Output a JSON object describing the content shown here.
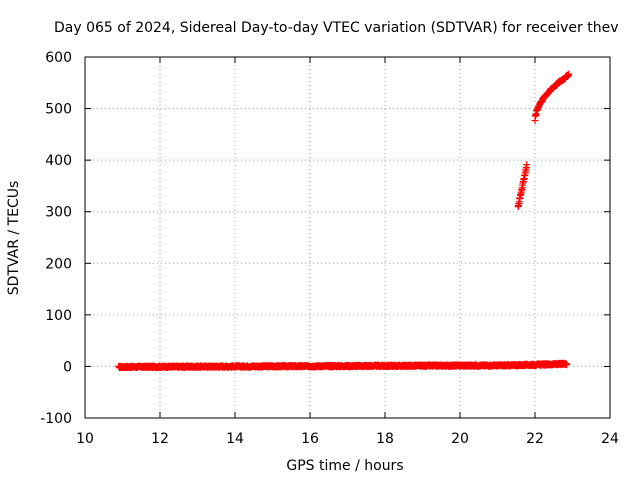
{
  "chart_data": {
    "type": "scatter",
    "title": "Day 065 of 2024, Sidereal Day-to-day VTEC variation (SDTVAR) for receiver thev",
    "xlabel": "GPS time / hours",
    "ylabel": "SDTVAR / TECUs",
    "xlim": [
      10,
      24
    ],
    "ylim": [
      -100,
      600
    ],
    "x_ticks": [
      "10",
      "12",
      "14",
      "16",
      "18",
      "20",
      "22",
      "24"
    ],
    "y_ticks": [
      "-100",
      "0",
      "100",
      "200",
      "300",
      "400",
      "500",
      "600"
    ],
    "grid": true,
    "marker": "plus",
    "series": [
      {
        "color": "#ff0000",
        "segments": [
          {
            "x_start": 10.9,
            "x_end": 21.3,
            "y_start": -1,
            "y_end": 2
          },
          {
            "x_start": 21.3,
            "x_end": 22.85,
            "y_start": 2,
            "y_end": 5
          },
          {
            "x_start": 21.55,
            "x_end": 21.78,
            "y_start": 310,
            "y_end": 390
          },
          {
            "x_start": 22.0,
            "x_end": 22.9,
            "y_start": 475,
            "y_end": 565
          }
        ]
      }
    ]
  }
}
